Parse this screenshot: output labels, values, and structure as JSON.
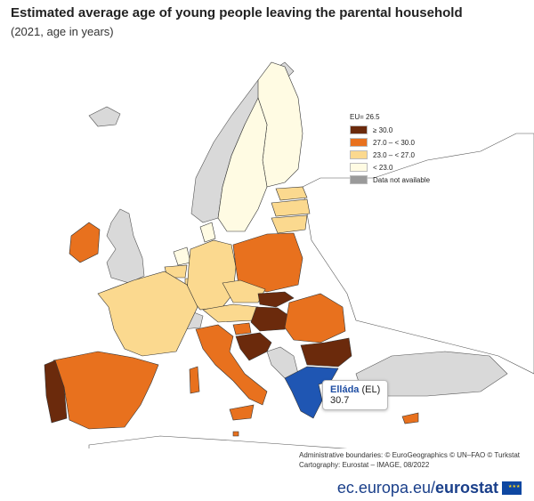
{
  "title": "Estimated average age of young people leaving the parental household",
  "subtitle": "(2021, age in years)",
  "legend": {
    "eu": "EU= 26.5",
    "classes": [
      {
        "label": "≥ 30.0",
        "color": "#6b2a0c"
      },
      {
        "label": "27.0 – < 30.0",
        "color": "#e8711e"
      },
      {
        "label": "23.0 – < 27.0",
        "color": "#fbd98f"
      },
      {
        "label": "< 23.0",
        "color": "#fffbe3"
      },
      {
        "label": "Data not available",
        "color": "#9a9a9a"
      }
    ]
  },
  "tooltip": {
    "name": "Elláda",
    "code": "(EL)",
    "value": "30.7"
  },
  "credits": {
    "line1": "Administrative boundaries: © EuroGeographics © UN–FAO © Turkstat",
    "line2": "Cartography: Eurostat – IMAGE, 08/2022"
  },
  "brand": {
    "prefix": "ec.europa.eu/",
    "suffix": "eurostat"
  },
  "colors": {
    "non_eu": "#d9d9d9",
    "selected": "#1f56b3",
    "border": "#333333"
  }
}
